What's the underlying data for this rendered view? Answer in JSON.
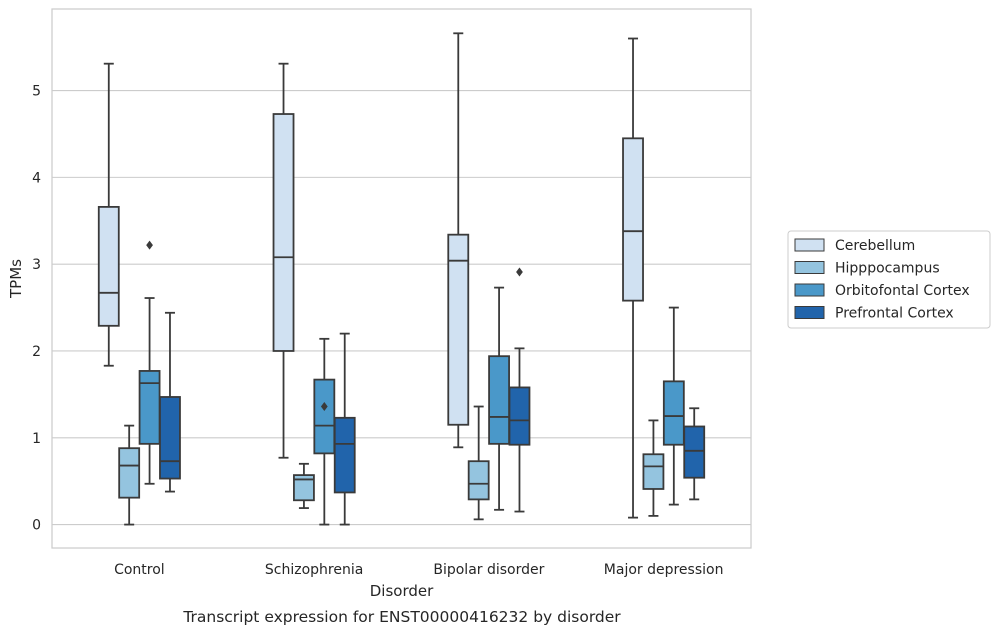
{
  "chart_data": {
    "type": "box",
    "caption": "Transcript expression for ENST00000416232 by disorder",
    "xlabel": "Disorder",
    "ylabel": "TPMs",
    "ylim": [
      -0.27,
      5.94
    ],
    "yticks": [
      0,
      1,
      2,
      3,
      4,
      5
    ],
    "grid": "horizontal",
    "legend_position": "right",
    "categories": [
      "Control",
      "Schizophrenia",
      "Bipolar disorder",
      "Major depression"
    ],
    "series": [
      {
        "name": "Cerebellum",
        "color": "#d0e1f2",
        "boxes": [
          {
            "whisker_low": 1.83,
            "q1": 2.29,
            "median": 2.67,
            "q3": 3.66,
            "whisker_high": 5.31,
            "outliers": []
          },
          {
            "whisker_low": 0.77,
            "q1": 2.0,
            "median": 3.08,
            "q3": 4.73,
            "whisker_high": 5.31,
            "outliers": []
          },
          {
            "whisker_low": 0.89,
            "q1": 1.15,
            "median": 3.04,
            "q3": 3.34,
            "whisker_high": 5.66,
            "outliers": []
          },
          {
            "whisker_low": 0.08,
            "q1": 2.58,
            "median": 3.38,
            "q3": 4.45,
            "whisker_high": 5.6,
            "outliers": []
          }
        ]
      },
      {
        "name": "Hipppocampus",
        "color": "#94c4df",
        "boxes": [
          {
            "whisker_low": 0.0,
            "q1": 0.31,
            "median": 0.68,
            "q3": 0.88,
            "whisker_high": 1.14,
            "outliers": []
          },
          {
            "whisker_low": 0.19,
            "q1": 0.28,
            "median": 0.52,
            "q3": 0.57,
            "whisker_high": 0.7,
            "outliers": []
          },
          {
            "whisker_low": 0.06,
            "q1": 0.29,
            "median": 0.47,
            "q3": 0.73,
            "whisker_high": 1.36,
            "outliers": []
          },
          {
            "whisker_low": 0.1,
            "q1": 0.41,
            "median": 0.67,
            "q3": 0.81,
            "whisker_high": 1.2,
            "outliers": []
          }
        ]
      },
      {
        "name": "Orbitofontal Cortex",
        "color": "#4a98c9",
        "boxes": [
          {
            "whisker_low": 0.47,
            "q1": 0.93,
            "median": 1.63,
            "q3": 1.77,
            "whisker_high": 2.61,
            "outliers": [
              3.22
            ]
          },
          {
            "whisker_low": 0.0,
            "q1": 0.82,
            "median": 1.14,
            "q3": 1.67,
            "whisker_high": 2.14,
            "outliers": [
              1.36
            ]
          },
          {
            "whisker_low": 0.17,
            "q1": 0.93,
            "median": 1.24,
            "q3": 1.94,
            "whisker_high": 2.73,
            "outliers": []
          },
          {
            "whisker_low": 0.23,
            "q1": 0.92,
            "median": 1.25,
            "q3": 1.65,
            "whisker_high": 2.5,
            "outliers": []
          }
        ]
      },
      {
        "name": "Prefrontal Cortex",
        "color": "#2164ab",
        "boxes": [
          {
            "whisker_low": 0.38,
            "q1": 0.53,
            "median": 0.73,
            "q3": 1.47,
            "whisker_high": 2.44,
            "outliers": []
          },
          {
            "whisker_low": 0.0,
            "q1": 0.37,
            "median": 0.93,
            "q3": 1.23,
            "whisker_high": 2.2,
            "outliers": []
          },
          {
            "whisker_low": 0.15,
            "q1": 0.92,
            "median": 1.2,
            "q3": 1.58,
            "whisker_high": 2.03,
            "outliers": [
              2.91
            ]
          },
          {
            "whisker_low": 0.29,
            "q1": 0.54,
            "median": 0.85,
            "q3": 1.13,
            "whisker_high": 1.34,
            "outliers": []
          }
        ]
      }
    ]
  }
}
